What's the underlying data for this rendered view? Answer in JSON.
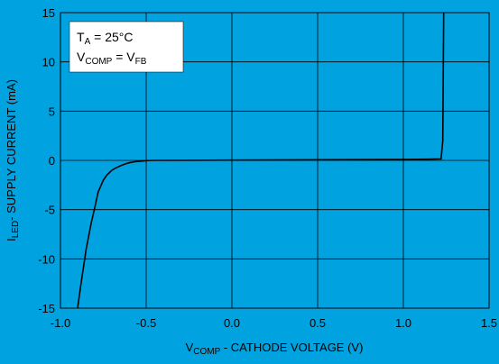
{
  "colors": {
    "background": "#00a3e0",
    "grid": "#000000",
    "curve": "#000000",
    "annotation_box": "#ffffff"
  },
  "chart_data": {
    "type": "line",
    "xlabel": {
      "main": "V",
      "sub": "COMP",
      "rest": " - CATHODE VOLTAGE (V)"
    },
    "ylabel": {
      "main": "I",
      "sub": "LED",
      "rest": "- SUPPLY CURRENT (mA)"
    },
    "xlim": [
      -1.0,
      1.5
    ],
    "ylim": [
      -15,
      15
    ],
    "x_ticks": [
      -1.0,
      -0.5,
      0.0,
      0.5,
      1.0,
      1.5
    ],
    "x_tick_labels": [
      "-1.0",
      "-0.5",
      "0.0",
      "0.5",
      "1.0",
      "1.5"
    ],
    "y_ticks": [
      15,
      10,
      5,
      0,
      -5,
      -10,
      -15
    ],
    "y_tick_labels": [
      "15",
      "10",
      "5",
      "0",
      "-5",
      "-10",
      "-15"
    ],
    "grid": true,
    "annotation": {
      "line1": {
        "main": "T",
        "sub": "A",
        "rest": " = 25°C"
      },
      "line2": {
        "main": "V",
        "sub": "COMP",
        "mid": " = V",
        "sub2": "FB"
      }
    },
    "series": [
      {
        "x": [
          -0.9,
          -0.88,
          -0.85,
          -0.82,
          -0.8,
          -0.78,
          -0.75,
          -0.73,
          -0.7,
          -0.68,
          -0.65,
          -0.62,
          -0.6,
          -0.57,
          -0.55,
          -0.52,
          -0.5,
          -0.45,
          -0.3,
          0.0,
          0.5,
          1.0,
          1.15,
          1.22,
          1.23,
          1.235
        ],
        "y": [
          -15,
          -12.5,
          -9,
          -6.3,
          -4.8,
          -3.2,
          -2.0,
          -1.5,
          -1.0,
          -0.8,
          -0.55,
          -0.35,
          -0.25,
          -0.15,
          -0.1,
          -0.06,
          -0.03,
          0.0,
          0.01,
          0.03,
          0.06,
          0.1,
          0.12,
          0.15,
          2.0,
          15
        ]
      }
    ]
  }
}
